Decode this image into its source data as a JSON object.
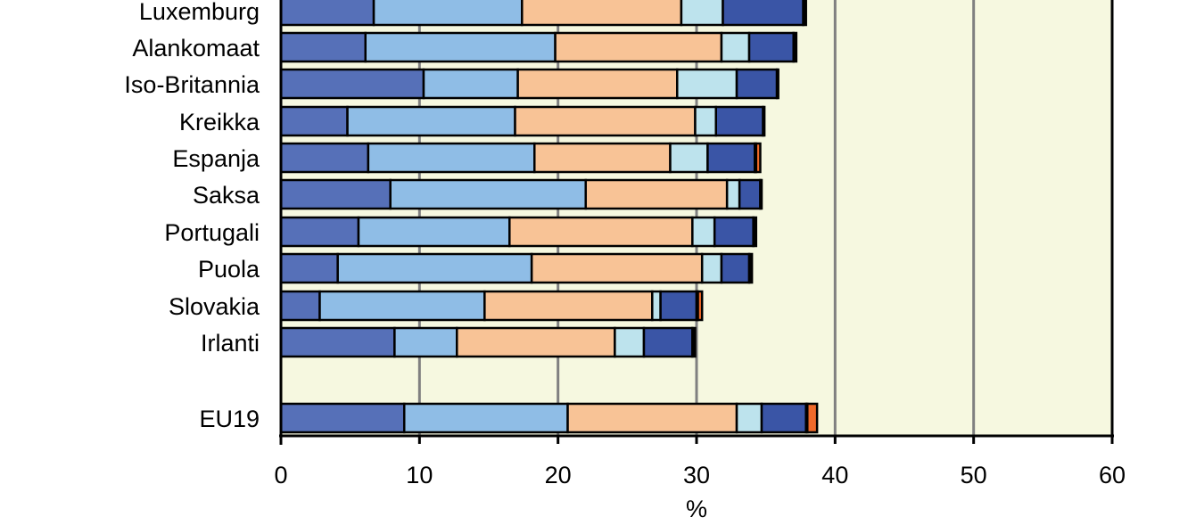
{
  "chart_data": {
    "type": "bar",
    "orientation": "horizontal",
    "stacked": true,
    "categories": [
      "Luxemburg",
      "Alankomaat",
      "Iso-Britannia",
      "Kreikka",
      "Espanja",
      "Saksa",
      "Portugali",
      "Puola",
      "Slovakia",
      "Irlanti",
      "EU19"
    ],
    "series": [
      {
        "color": "#5670b8",
        "values": [
          6.7,
          6.1,
          10.3,
          4.8,
          6.3,
          7.9,
          5.6,
          4.1,
          2.8,
          8.2,
          8.9
        ]
      },
      {
        "color": "#8fbde6",
        "values": [
          10.7,
          13.7,
          6.8,
          12.1,
          12.0,
          14.1,
          10.9,
          14.0,
          11.9,
          4.5,
          11.8
        ]
      },
      {
        "color": "#f8c396",
        "values": [
          11.5,
          12.0,
          11.5,
          13.0,
          9.8,
          10.2,
          13.2,
          12.3,
          12.1,
          11.4,
          12.2
        ]
      },
      {
        "color": "#bde3ed",
        "values": [
          3.0,
          2.0,
          4.3,
          1.5,
          2.7,
          0.9,
          1.6,
          1.4,
          0.6,
          2.1,
          1.8
        ]
      },
      {
        "color": "#3a55a6",
        "values": [
          5.8,
          3.2,
          2.9,
          3.4,
          3.4,
          1.5,
          2.8,
          2.0,
          2.6,
          3.5,
          3.2
        ]
      },
      {
        "color": "#000000",
        "values": [
          0.2,
          0.2,
          0.1,
          0.1,
          0.1,
          0.1,
          0.2,
          0.2,
          0.1,
          0.2,
          0.1
        ]
      },
      {
        "color": "#f06a2a",
        "values": [
          0,
          0,
          0,
          0,
          0.3,
          0,
          0,
          0,
          0.3,
          0,
          0.7
        ]
      }
    ],
    "xlim": [
      0,
      60
    ],
    "xticks": [
      0,
      10,
      20,
      30,
      40,
      50,
      60
    ],
    "xlabel": "%",
    "grid": "vertical",
    "plot_background": "#f6f8e0",
    "gridline_color": "#808080"
  }
}
